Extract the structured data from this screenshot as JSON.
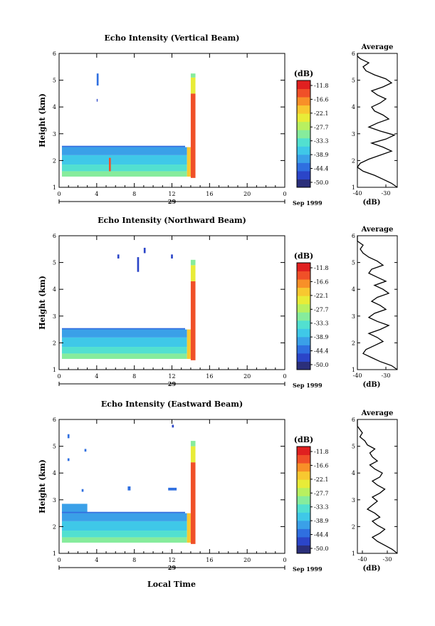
{
  "figure": {
    "colorbar_unit": "(dB)",
    "colorbar_ticks": [
      "-11.8",
      "-16.6",
      "-22.1",
      "-27.7",
      "-33.3",
      "-38.9",
      "-44.4",
      "-50.0"
    ],
    "time_ticks": [
      "0",
      "4",
      "8",
      "12",
      "16",
      "20",
      "0"
    ],
    "date_day": "29",
    "date_label": "Sep 1999",
    "xlabel": "Local Time",
    "ylabel": "Height (km)",
    "profile_title": "Average",
    "profile_xlabel": "(dB)",
    "profile_ticks": [
      "-40",
      "-30"
    ],
    "height_ticks": [
      "1",
      "2",
      "3",
      "4",
      "5",
      "6"
    ]
  },
  "colors": {
    "scale": [
      "#2b2f7a",
      "#2b45c8",
      "#2f6fe0",
      "#3aa0e8",
      "#3fc8e8",
      "#52e0d0",
      "#86ec9c",
      "#b8f060",
      "#e8ec38",
      "#f8c830",
      "#f89028",
      "#f05028",
      "#e02020"
    ]
  },
  "chart_data": [
    {
      "type": "heatmap",
      "title": "Echo Intensity (Vertical Beam)",
      "xlim": [
        0,
        24
      ],
      "ylim": [
        1,
        6
      ],
      "regions": [
        {
          "t0": 0.3,
          "t1": 13.6,
          "h0": 1.4,
          "h1": 1.6,
          "level": 6
        },
        {
          "t0": 0.3,
          "t1": 13.6,
          "h0": 1.6,
          "h1": 1.85,
          "level": 5
        },
        {
          "t0": 0.3,
          "t1": 13.6,
          "h0": 1.85,
          "h1": 2.2,
          "level": 4
        },
        {
          "t0": 0.3,
          "t1": 13.6,
          "h0": 2.2,
          "h1": 2.5,
          "level": 3
        },
        {
          "t0": 0.3,
          "t1": 13.4,
          "h0": 2.5,
          "h1": 2.55,
          "level": 2
        },
        {
          "t0": 4.0,
          "t1": 4.2,
          "h0": 4.8,
          "h1": 5.25,
          "level": 2
        },
        {
          "t0": 4.0,
          "t1": 4.1,
          "h0": 4.2,
          "h1": 4.3,
          "level": 1
        },
        {
          "t0": 5.3,
          "t1": 5.5,
          "h0": 1.6,
          "h1": 2.1,
          "level": 11
        },
        {
          "t0": 13.6,
          "t1": 14.0,
          "h0": 1.4,
          "h1": 2.5,
          "level": 9
        },
        {
          "t0": 14.0,
          "t1": 14.5,
          "h0": 1.35,
          "h1": 4.5,
          "level": 11
        },
        {
          "t0": 14.0,
          "t1": 14.5,
          "h0": 4.5,
          "h1": 5.1,
          "level": 8
        },
        {
          "t0": 14.0,
          "t1": 14.5,
          "h0": 5.1,
          "h1": 5.25,
          "level": 6
        }
      ],
      "profile": {
        "xlim": [
          -40,
          -26
        ],
        "dB": [
          -26,
          -28,
          -31,
          -34,
          -38,
          -40,
          -39,
          -36,
          -32,
          -28,
          -31,
          -35,
          -30,
          -27,
          -32,
          -36,
          -33,
          -29,
          -31,
          -34,
          -35,
          -32,
          -30,
          -33,
          -35,
          -31,
          -28,
          -30,
          -34,
          -37,
          -38,
          -36,
          -39,
          -40,
          -40
        ],
        "height": [
          1.0,
          1.15,
          1.3,
          1.45,
          1.6,
          1.75,
          1.9,
          2.05,
          2.2,
          2.35,
          2.5,
          2.65,
          2.8,
          2.95,
          3.1,
          3.25,
          3.4,
          3.55,
          3.7,
          3.85,
          4.0,
          4.15,
          4.3,
          4.45,
          4.6,
          4.75,
          4.9,
          5.05,
          5.2,
          5.35,
          5.5,
          5.65,
          5.8,
          5.9,
          6.0
        ]
      }
    },
    {
      "type": "heatmap",
      "title": "Echo Intensity (Northward Beam)",
      "xlim": [
        0,
        24
      ],
      "ylim": [
        1,
        6
      ],
      "regions": [
        {
          "t0": 0.3,
          "t1": 13.6,
          "h0": 1.4,
          "h1": 1.6,
          "level": 6
        },
        {
          "t0": 0.3,
          "t1": 13.6,
          "h0": 1.6,
          "h1": 1.85,
          "level": 5
        },
        {
          "t0": 0.3,
          "t1": 13.6,
          "h0": 1.85,
          "h1": 2.2,
          "level": 4
        },
        {
          "t0": 0.3,
          "t1": 13.6,
          "h0": 2.2,
          "h1": 2.5,
          "level": 3
        },
        {
          "t0": 0.3,
          "t1": 13.4,
          "h0": 2.5,
          "h1": 2.55,
          "level": 2
        },
        {
          "t0": 6.2,
          "t1": 6.4,
          "h0": 5.15,
          "h1": 5.3,
          "level": 1
        },
        {
          "t0": 8.3,
          "t1": 8.5,
          "h0": 4.65,
          "h1": 5.2,
          "level": 1
        },
        {
          "t0": 9.0,
          "t1": 9.2,
          "h0": 5.35,
          "h1": 5.55,
          "level": 1
        },
        {
          "t0": 11.9,
          "t1": 12.1,
          "h0": 5.15,
          "h1": 5.3,
          "level": 1
        },
        {
          "t0": 13.6,
          "t1": 14.0,
          "h0": 1.4,
          "h1": 2.5,
          "level": 9
        },
        {
          "t0": 14.0,
          "t1": 14.5,
          "h0": 1.35,
          "h1": 4.3,
          "level": 11
        },
        {
          "t0": 14.0,
          "t1": 14.5,
          "h0": 4.3,
          "h1": 4.9,
          "level": 8
        },
        {
          "t0": 14.0,
          "t1": 14.5,
          "h0": 4.9,
          "h1": 5.1,
          "level": 6
        }
      ],
      "profile": {
        "xlim": [
          -40,
          -26
        ],
        "dB": [
          -26,
          -28,
          -32,
          -35,
          -38,
          -37,
          -34,
          -31,
          -33,
          -36,
          -32,
          -29,
          -33,
          -36,
          -34,
          -30,
          -32,
          -35,
          -33,
          -29,
          -31,
          -34,
          -30,
          -33,
          -36,
          -35,
          -31,
          -33,
          -36,
          -38,
          -39,
          -38,
          -40,
          -40
        ],
        "height": [
          1.0,
          1.15,
          1.3,
          1.45,
          1.6,
          1.75,
          1.9,
          2.05,
          2.2,
          2.35,
          2.5,
          2.65,
          2.8,
          2.95,
          3.1,
          3.25,
          3.4,
          3.55,
          3.7,
          3.85,
          4.0,
          4.15,
          4.3,
          4.45,
          4.6,
          4.75,
          4.9,
          5.05,
          5.2,
          5.35,
          5.5,
          5.65,
          5.8,
          6.0
        ]
      }
    },
    {
      "type": "heatmap",
      "title": "Echo Intensity (Eastward Beam)",
      "xlim": [
        0,
        24
      ],
      "ylim": [
        1,
        6
      ],
      "regions": [
        {
          "t0": 0.3,
          "t1": 13.6,
          "h0": 1.4,
          "h1": 1.6,
          "level": 6
        },
        {
          "t0": 0.3,
          "t1": 13.6,
          "h0": 1.6,
          "h1": 1.85,
          "level": 5
        },
        {
          "t0": 0.3,
          "t1": 13.6,
          "h0": 1.85,
          "h1": 2.2,
          "level": 4
        },
        {
          "t0": 0.3,
          "t1": 13.6,
          "h0": 2.2,
          "h1": 2.5,
          "level": 3
        },
        {
          "t0": 0.3,
          "t1": 3.0,
          "h0": 2.5,
          "h1": 2.85,
          "level": 3
        },
        {
          "t0": 0.3,
          "t1": 13.4,
          "h0": 2.5,
          "h1": 2.55,
          "level": 2
        },
        {
          "t0": 0.9,
          "t1": 1.1,
          "h0": 5.3,
          "h1": 5.45,
          "level": 2
        },
        {
          "t0": 0.9,
          "t1": 1.1,
          "h0": 4.45,
          "h1": 4.55,
          "level": 2
        },
        {
          "t0": 2.7,
          "t1": 2.9,
          "h0": 4.8,
          "h1": 4.9,
          "level": 2
        },
        {
          "t0": 2.4,
          "t1": 2.6,
          "h0": 3.3,
          "h1": 3.4,
          "level": 2
        },
        {
          "t0": 7.3,
          "t1": 7.6,
          "h0": 3.35,
          "h1": 3.5,
          "level": 2
        },
        {
          "t0": 11.6,
          "t1": 12.5,
          "h0": 3.35,
          "h1": 3.45,
          "level": 2
        },
        {
          "t0": 12.0,
          "t1": 12.2,
          "h0": 5.7,
          "h1": 5.8,
          "level": 1
        },
        {
          "t0": 13.6,
          "t1": 14.0,
          "h0": 1.4,
          "h1": 2.5,
          "level": 9
        },
        {
          "t0": 14.0,
          "t1": 14.5,
          "h0": 1.35,
          "h1": 4.4,
          "level": 11
        },
        {
          "t0": 14.0,
          "t1": 14.5,
          "h0": 4.4,
          "h1": 5.0,
          "level": 8
        },
        {
          "t0": 14.0,
          "t1": 14.5,
          "h0": 5.0,
          "h1": 5.2,
          "level": 6
        }
      ],
      "profile": {
        "xlim": [
          -42,
          -26
        ],
        "dB": [
          -26,
          -28,
          -31,
          -34,
          -36,
          -33,
          -31,
          -34,
          -36,
          -33,
          -35,
          -38,
          -36,
          -34,
          -36,
          -33,
          -31,
          -34,
          -36,
          -33,
          -32,
          -35,
          -37,
          -34,
          -36,
          -37,
          -35,
          -38,
          -39,
          -41,
          -40,
          -42,
          -42
        ],
        "height": [
          1.0,
          1.15,
          1.3,
          1.45,
          1.6,
          1.75,
          1.9,
          2.05,
          2.2,
          2.35,
          2.5,
          2.65,
          2.8,
          2.95,
          3.1,
          3.25,
          3.4,
          3.55,
          3.7,
          3.85,
          4.0,
          4.15,
          4.3,
          4.45,
          4.6,
          4.75,
          4.9,
          5.05,
          5.2,
          5.35,
          5.5,
          5.75,
          6.0
        ]
      }
    }
  ]
}
